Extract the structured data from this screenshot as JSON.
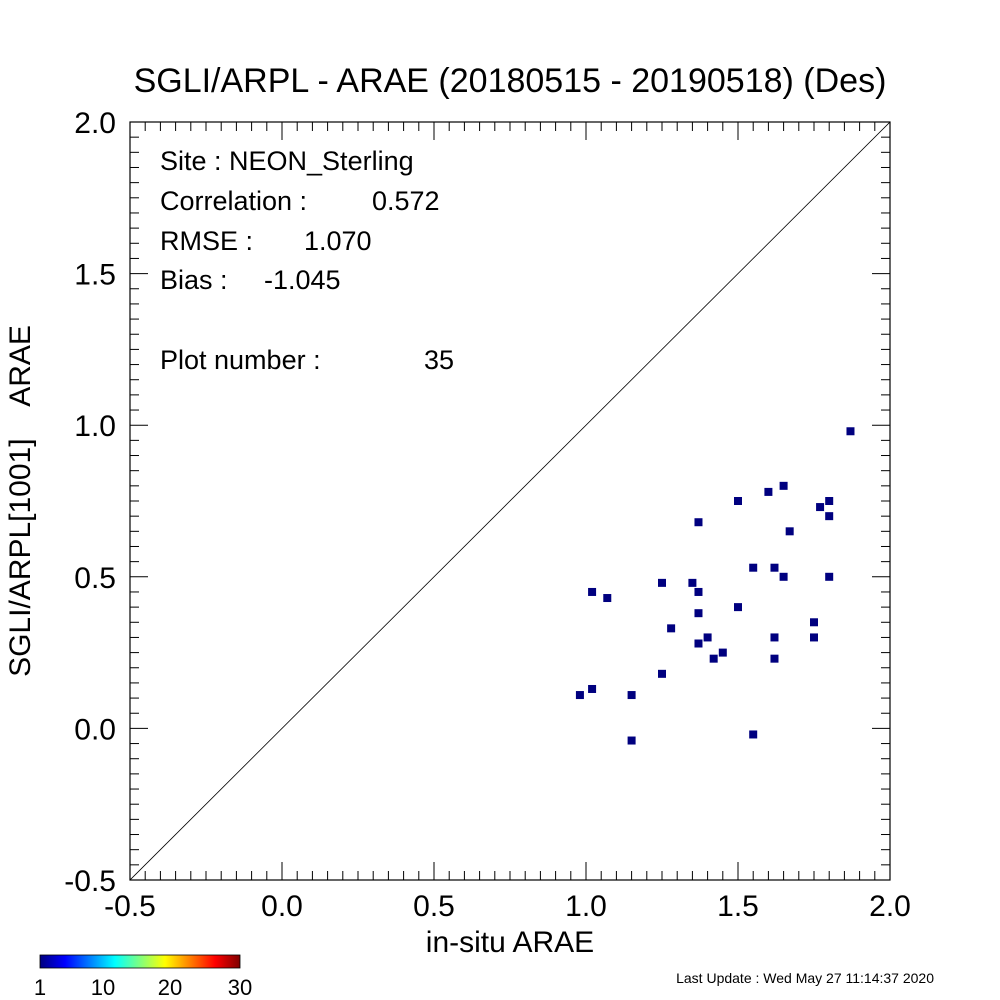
{
  "chart_data": {
    "type": "scatter",
    "title": "SGLI/ARPL - ARAE (20180515 - 20190518) (Des)",
    "xlabel": "in-situ ARAE",
    "ylabel": "SGLI/ARPL[1001]    ARAE",
    "xlim": [
      -0.5,
      2.0
    ],
    "ylim": [
      -0.5,
      2.0
    ],
    "xticks": [
      "-0.5",
      "0.0",
      "0.5",
      "1.0",
      "1.5",
      "2.0"
    ],
    "yticks": [
      "-0.5",
      "0.0",
      "0.5",
      "1.0",
      "1.5",
      "2.0"
    ],
    "one_to_one_line": true,
    "marker_color": "#00007f",
    "stats": {
      "site": "Site : NEON_Sterling",
      "correlation_label": "Correlation :",
      "correlation": "0.572",
      "rmse_label": "RMSE :",
      "rmse": "1.070",
      "bias_label": "Bias :",
      "bias": "-1.045",
      "plot_number_label": "Plot number :",
      "plot_number": "35"
    },
    "points": [
      [
        0.98,
        0.11
      ],
      [
        1.02,
        0.13
      ],
      [
        1.02,
        0.45
      ],
      [
        1.07,
        0.43
      ],
      [
        1.15,
        0.11
      ],
      [
        1.15,
        -0.04
      ],
      [
        1.25,
        0.48
      ],
      [
        1.25,
        0.18
      ],
      [
        1.28,
        0.33
      ],
      [
        1.35,
        0.48
      ],
      [
        1.37,
        0.45
      ],
      [
        1.37,
        0.68
      ],
      [
        1.37,
        0.38
      ],
      [
        1.37,
        0.28
      ],
      [
        1.4,
        0.3
      ],
      [
        1.42,
        0.23
      ],
      [
        1.45,
        0.25
      ],
      [
        1.5,
        0.75
      ],
      [
        1.5,
        0.4
      ],
      [
        1.55,
        0.53
      ],
      [
        1.55,
        -0.02
      ],
      [
        1.6,
        0.78
      ],
      [
        1.62,
        0.53
      ],
      [
        1.62,
        0.3
      ],
      [
        1.62,
        0.23
      ],
      [
        1.65,
        0.8
      ],
      [
        1.65,
        0.5
      ],
      [
        1.67,
        0.65
      ],
      [
        1.75,
        0.35
      ],
      [
        1.75,
        0.3
      ],
      [
        1.77,
        0.73
      ],
      [
        1.8,
        0.75
      ],
      [
        1.8,
        0.7
      ],
      [
        1.8,
        0.5
      ],
      [
        1.87,
        0.98
      ]
    ],
    "colorbar": {
      "ticks": [
        "1",
        "10",
        "20",
        "30"
      ],
      "colors": [
        "#00007f",
        "#0000ff",
        "#007fff",
        "#00ffff",
        "#7fff7f",
        "#ffff00",
        "#ff7f00",
        "#ff0000",
        "#7f0000"
      ]
    }
  },
  "footer": {
    "last_update": "Last Update : Wed May 27 11:14:37 2020"
  }
}
